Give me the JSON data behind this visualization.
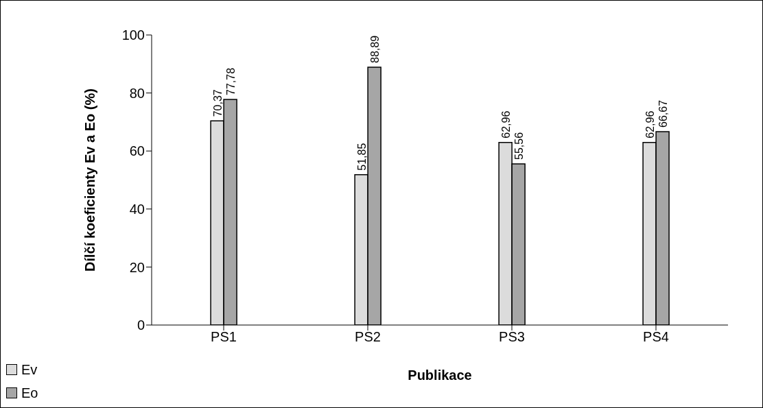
{
  "chart_data": {
    "type": "bar",
    "xlabel": "Publikace",
    "ylabel": "Dílčí koeficienty Ev a Eo (%)",
    "categories": [
      "PS1",
      "PS2",
      "PS3",
      "PS4"
    ],
    "series": [
      {
        "name": "Ev",
        "color": "#dcdcdc",
        "values": [
          70.37,
          51.85,
          62.96,
          62.96
        ],
        "value_labels": [
          "70,37",
          "51,85",
          "62,96",
          "62,96"
        ]
      },
      {
        "name": "Eo",
        "color": "#a6a6a6",
        "values": [
          77.78,
          88.89,
          55.56,
          66.67
        ],
        "value_labels": [
          "77,78",
          "88,89",
          "55,56",
          "66,67"
        ]
      }
    ],
    "ylim": [
      0,
      100
    ],
    "yticks": [
      0,
      20,
      40,
      60,
      80,
      100
    ],
    "grid": false,
    "legend": "bottom left"
  }
}
